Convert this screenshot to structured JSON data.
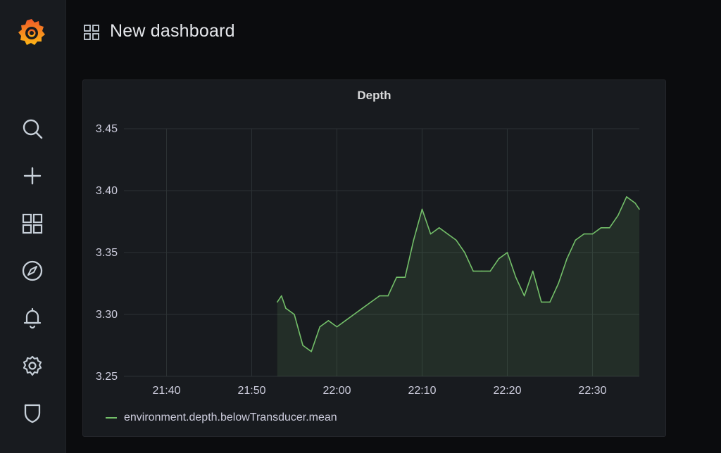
{
  "app": {
    "name": "Grafana"
  },
  "sidebar": {
    "items": [
      {
        "icon": "search-icon"
      },
      {
        "icon": "plus-icon"
      },
      {
        "icon": "dashboards-icon"
      },
      {
        "icon": "explore-compass-icon"
      },
      {
        "icon": "alerting-bell-icon"
      },
      {
        "icon": "configuration-gear-icon"
      },
      {
        "icon": "server-admin-shield-icon"
      }
    ]
  },
  "header": {
    "title": "New dashboard",
    "icon": "dashboard-grid-icon"
  },
  "panel": {
    "title": "Depth"
  },
  "colors": {
    "series": "#73bf69",
    "background": "#0b0c0e",
    "panel": "#181b1f",
    "grid": "#2c3235"
  },
  "chart_data": {
    "type": "line",
    "title": "Depth",
    "ylim": [
      3.25,
      3.45
    ],
    "yticks": [
      "3.45",
      "3.40",
      "3.35",
      "3.30",
      "3.25"
    ],
    "xticks": [
      "21:40",
      "21:50",
      "22:00",
      "22:10",
      "22:20",
      "22:30"
    ],
    "grid": true,
    "legend_placement": "bottom-left",
    "series": [
      {
        "name": "environment.depth.belowTransducer.mean",
        "color": "#73bf69",
        "fill": true,
        "x": [
          "21:53",
          "21:53:30",
          "21:54",
          "21:55",
          "21:56",
          "21:57",
          "21:58",
          "21:59",
          "22:00",
          "22:01",
          "22:02",
          "22:03",
          "22:04",
          "22:05",
          "22:06",
          "22:07",
          "22:08",
          "22:09",
          "22:10",
          "22:11",
          "22:12",
          "22:13",
          "22:14",
          "22:15",
          "22:16",
          "22:17",
          "22:18",
          "22:19",
          "22:20",
          "22:21",
          "22:22",
          "22:23",
          "22:24",
          "22:25",
          "22:26",
          "22:27",
          "22:28",
          "22:29",
          "22:30",
          "22:31",
          "22:32",
          "22:33",
          "22:34",
          "22:35",
          "22:35:30"
        ],
        "values": [
          3.31,
          3.315,
          3.305,
          3.3,
          3.275,
          3.27,
          3.29,
          3.295,
          3.29,
          3.295,
          3.3,
          3.305,
          3.31,
          3.315,
          3.315,
          3.33,
          3.33,
          3.36,
          3.385,
          3.365,
          3.37,
          3.365,
          3.36,
          3.35,
          3.335,
          3.335,
          3.335,
          3.345,
          3.35,
          3.33,
          3.315,
          3.335,
          3.31,
          3.31,
          3.325,
          3.345,
          3.36,
          3.365,
          3.365,
          3.37,
          3.37,
          3.38,
          3.395,
          3.39,
          3.385
        ]
      }
    ]
  }
}
